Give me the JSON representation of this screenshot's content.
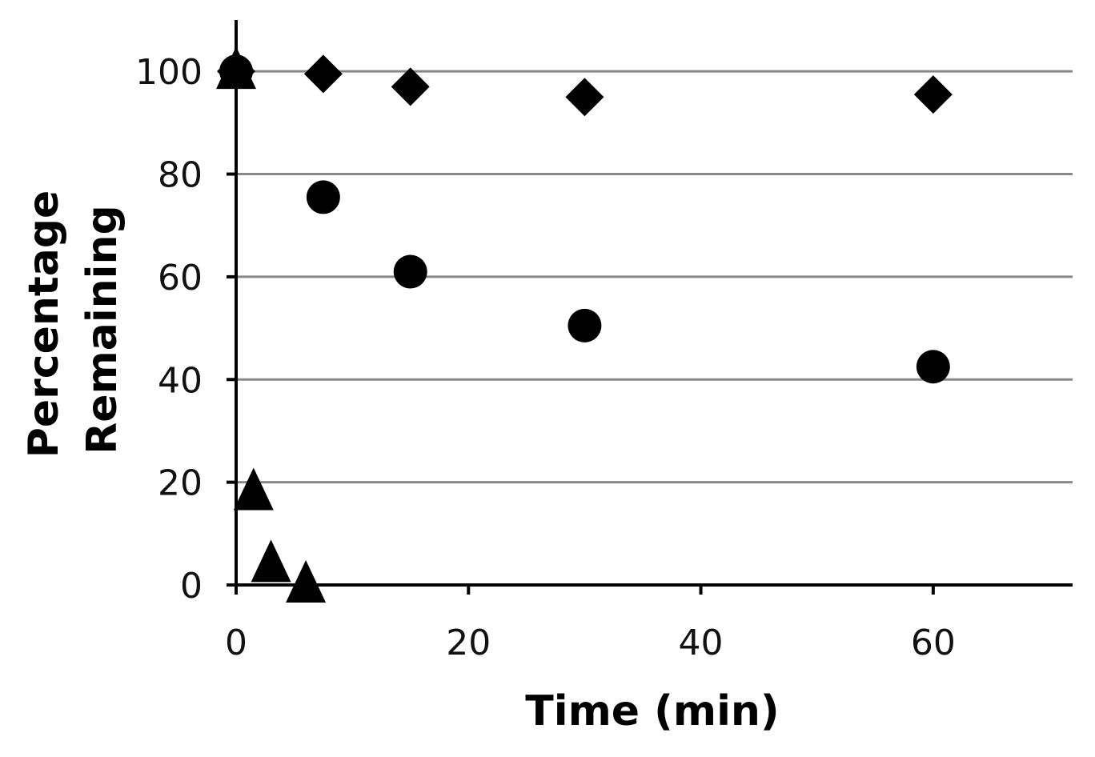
{
  "chart_data": {
    "type": "scatter",
    "title": "",
    "xlabel": "Time (min)",
    "ylabel_lines": [
      "Percentage",
      "Remaining"
    ],
    "xlim": [
      0,
      72
    ],
    "ylim": [
      0,
      110
    ],
    "xticks": [
      0,
      20,
      40,
      60
    ],
    "yticks": [
      0,
      20,
      40,
      60,
      80,
      100
    ],
    "grid": "horizontal",
    "legend": "none",
    "series": [
      {
        "marker": "diamond",
        "color": "#000000",
        "x": [
          0,
          7.5,
          15,
          30,
          60
        ],
        "y": [
          100,
          99.5,
          97,
          95,
          95.5
        ]
      },
      {
        "marker": "circle",
        "color": "#000000",
        "x": [
          0,
          7.5,
          15,
          30,
          60
        ],
        "y": [
          100,
          75.5,
          61,
          50.5,
          42.5
        ]
      },
      {
        "marker": "triangle",
        "color": "#000000",
        "x": [
          0,
          1.5,
          3,
          6
        ],
        "y": [
          100,
          18,
          4,
          0
        ]
      }
    ]
  }
}
